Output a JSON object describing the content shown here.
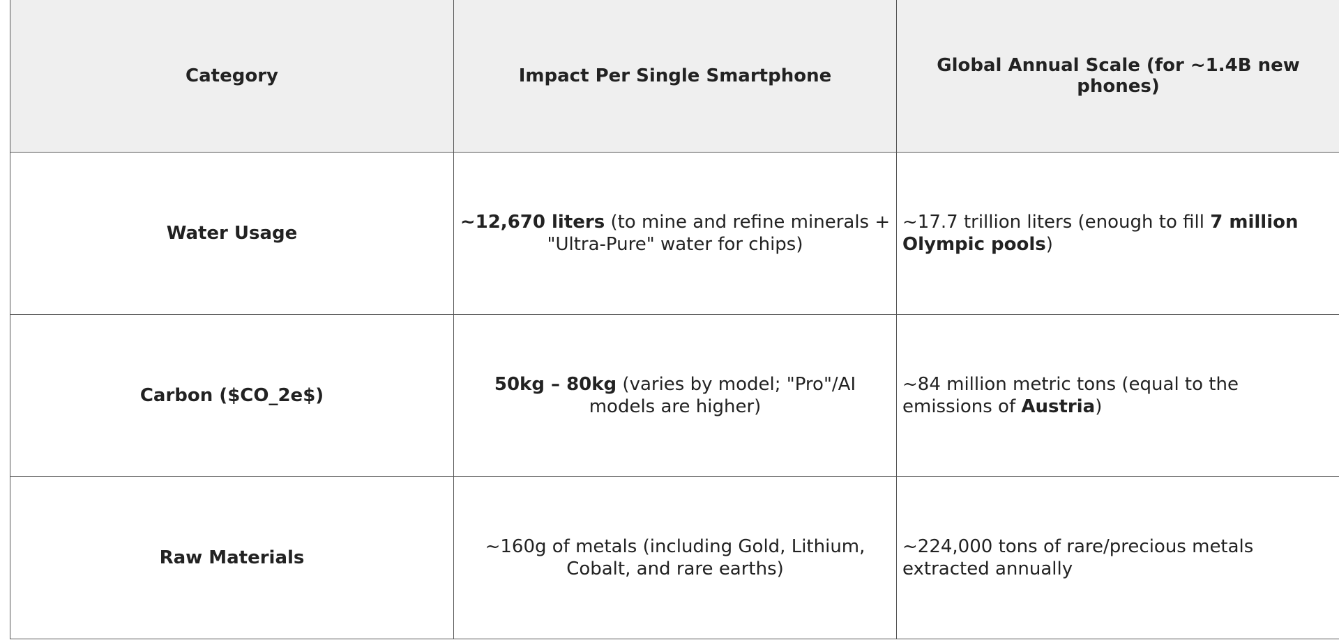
{
  "headers": [
    "Category",
    "Impact Per Single Smartphone",
    "Global Annual Scale (for ~1.4B new phones)"
  ],
  "rows": [
    {
      "category": "Water Usage",
      "impact_bold": "~12,670 liters",
      "impact_rest": " (to mine and refine minerals + \"Ultra-Pure\" water for chips)",
      "global_pre": "~17.7 trillion liters (enough to fill ",
      "global_bold": "7 million Olympic pools",
      "global_post": ")"
    },
    {
      "category": "Carbon ($CO_2e$)",
      "impact_bold": "50kg – 80kg",
      "impact_rest": " (varies by model; \"Pro\"/AI models are higher)",
      "global_pre": "~84 million metric tons (equal to the emissions of ",
      "global_bold": "Austria",
      "global_post": ")"
    },
    {
      "category": "Raw Materials",
      "impact_bold": "",
      "impact_rest": "~160g of metals (including Gold, Lithium, Cobalt, and rare earths)",
      "global_pre": "~224,000 tons of rare/precious metals extracted annually",
      "global_bold": "",
      "global_post": ""
    }
  ]
}
